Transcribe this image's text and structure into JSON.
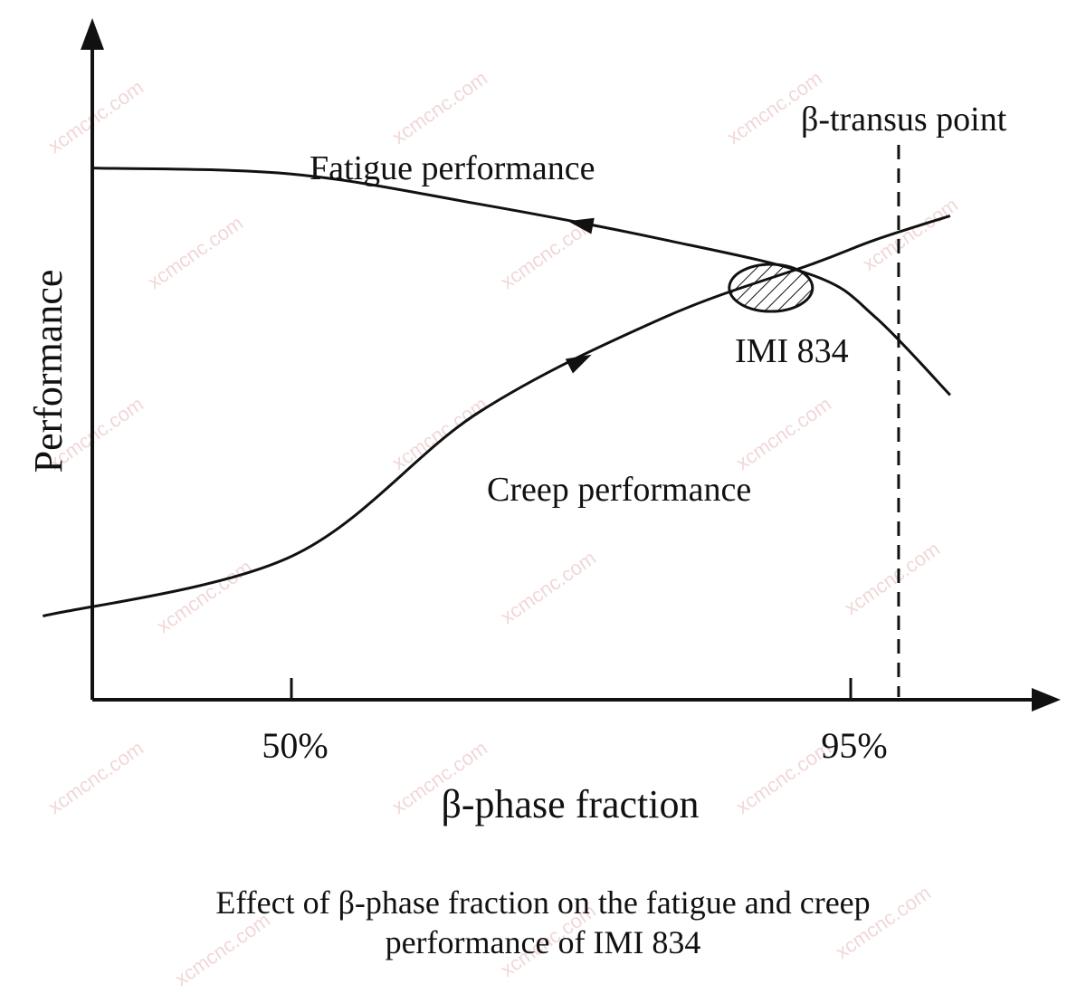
{
  "chart_data": {
    "type": "line",
    "xlabel": "β-phase fraction",
    "ylabel": "Performance",
    "x_ticks": [
      "50%",
      "95%"
    ],
    "series": [
      {
        "name": "Fatigue performance",
        "trend": "decreasing with increasing β-phase fraction",
        "x": [
          34,
          50,
          65,
          80,
          92,
          97,
          103
        ],
        "y": [
          0.89,
          0.88,
          0.83,
          0.77,
          0.71,
          0.64,
          0.51
        ]
      },
      {
        "name": "Creep performance",
        "trend": "increasing with increasing β-phase fraction",
        "x": [
          30,
          50,
          65,
          80,
          92,
          97,
          103
        ],
        "y": [
          0.14,
          0.24,
          0.48,
          0.64,
          0.73,
          0.77,
          0.81
        ]
      }
    ],
    "annotations": [
      {
        "text": "IMI 834",
        "marker": "hatched-ellipse",
        "at_x": 92
      },
      {
        "text": "β-transus point",
        "line": "vertical-dashed",
        "at_x": 99
      }
    ],
    "grid": false,
    "legend": "none"
  },
  "caption": {
    "line1": "Effect of β-phase fraction on the fatigue and creep",
    "line2": "performance of IMI 834"
  },
  "watermark": "xcmcnc.com",
  "colors": {
    "ink": "#111111",
    "watermark": "#e6b8b8"
  }
}
